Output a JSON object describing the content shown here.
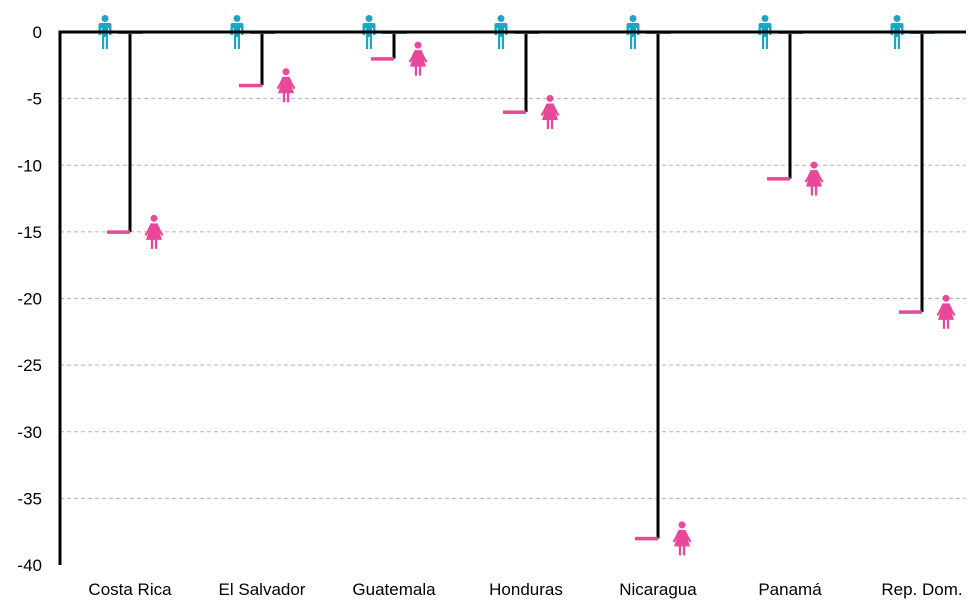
{
  "chart_data": {
    "type": "bar",
    "title": "",
    "xlabel": "",
    "ylabel": "",
    "categories": [
      "Costa Rica",
      "El Salvador",
      "Guatemala",
      "Honduras",
      "Nicaragua",
      "Panamá",
      "Rep. Dom."
    ],
    "series": [
      {
        "values": [
          0,
          0,
          0,
          0,
          0,
          0,
          0
        ]
      },
      {
        "values": [
          -15,
          -4,
          -2,
          -6,
          -38,
          -11,
          -21
        ]
      }
    ],
    "ylim": [
      -40,
      0
    ],
    "yticks": [
      0,
      -5,
      -10,
      -15,
      -20,
      -25,
      -30,
      -35,
      -40
    ],
    "ytick_labels": [
      "0",
      "-5",
      "-10",
      "-15",
      "-20",
      "-25",
      "-30",
      "-35",
      "-40"
    ],
    "grid": true,
    "legend": "none",
    "colors": {
      "male": "#1aa6c9",
      "female": "#e8479a",
      "stem": "#000000",
      "grid": "#b4b4b4"
    },
    "icons": {
      "male": "male-figure-icon",
      "female": "female-figure-icon"
    }
  }
}
